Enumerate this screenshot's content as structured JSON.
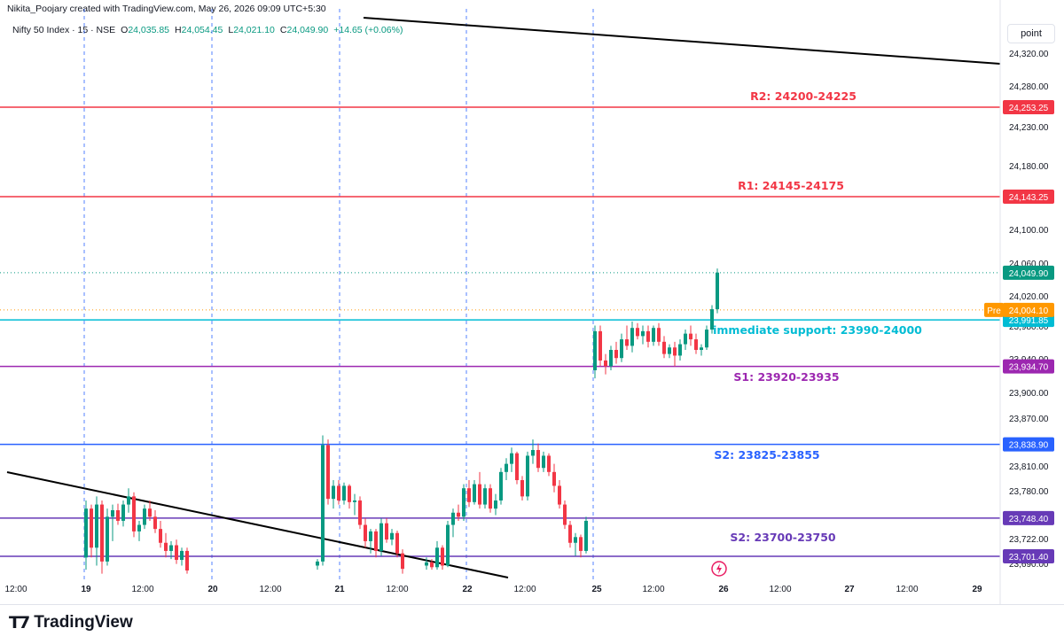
{
  "header": {
    "credit": "Nikita_Poojary created with TradingView.com, May 26, 2026 09:09 UTC+5:30"
  },
  "symbol_bar": {
    "name": "Nifty 50 Index · 15 · NSE",
    "o_label": "O",
    "o_value": "24,035.85",
    "h_label": "H",
    "h_value": "24,054.45",
    "l_label": "L",
    "l_value": "24,021.10",
    "c_label": "C",
    "c_value": "24,049.90",
    "change": "+14.65 (+0.06%)"
  },
  "toolbar": {
    "unit_label": "point"
  },
  "brand": {
    "logo_text": "TradingView",
    "logo_icon": "tradingview-logo-icon"
  },
  "colors": {
    "up": "#089981",
    "down": "#f23645",
    "resistance": "#f23645",
    "immediate": "#00bcd4",
    "s1": "#9c27b0",
    "s2_blue": "#2962ff",
    "s2_purple": "#673ab7",
    "pre": "#ff9800",
    "trend": "#000000"
  },
  "chart_data": {
    "type": "candlestick",
    "y_ticks": [
      "24,320.00",
      "24,280.00",
      "24,230.00",
      "24,180.00",
      "24,100.00",
      "24,060.00",
      "24,020.00",
      "23,980.00",
      "23,940.00",
      "23,900.00",
      "23,870.00",
      "23,840.00",
      "23,810.00",
      "23,780.00",
      "23,750.00",
      "23,722.00",
      "23,690.00"
    ],
    "x_ticks": [
      "12:00",
      "19",
      "12:00",
      "20",
      "12:00",
      "21",
      "12:00",
      "22",
      "12:00",
      "25",
      "12:00",
      "26",
      "12:00",
      "27",
      "12:00",
      "29"
    ],
    "x_tick_bold": [
      false,
      true,
      false,
      true,
      false,
      true,
      false,
      true,
      false,
      true,
      false,
      true,
      false,
      true,
      false,
      true
    ],
    "day_separators": [
      "19",
      "20",
      "21",
      "22",
      "25"
    ],
    "levels": [
      {
        "id": "r2",
        "value": 24253.25,
        "tag": "24,253.25",
        "label": "R2: 24200-24225",
        "color": "#f23645"
      },
      {
        "id": "r1",
        "value": 24143.25,
        "tag": "24,143.25",
        "label": "R1: 24145-24175",
        "color": "#f23645"
      },
      {
        "id": "immediate",
        "value": 23991.85,
        "tag": "23,991.85",
        "label": "immediate support: 23990-24000",
        "color": "#00bcd4"
      },
      {
        "id": "s1",
        "value": 23934.7,
        "tag": "23,934.70",
        "label": "S1: 23920-23935",
        "color": "#9c27b0"
      },
      {
        "id": "s2a",
        "value": 23838.9,
        "tag": "23,838.90",
        "label": "S2: 23825-23855",
        "color": "#2962ff"
      },
      {
        "id": "s2b",
        "value": 23748.4,
        "tag": "23,748.40",
        "label": "S2: 23700-23750",
        "color": "#673ab7"
      },
      {
        "id": "base",
        "value": 23701.4,
        "tag": "23,701.40",
        "label": "",
        "color": "#673ab7"
      }
    ],
    "last_price": {
      "value": 24049.9,
      "tag": "24,049.90"
    },
    "pre_market": {
      "value": 24004.1,
      "tag": "24,004.10",
      "label": "Pre"
    },
    "candles": [
      {
        "t": "19",
        "o": 23700,
        "h": 23770,
        "l": 23685,
        "c": 23760
      },
      {
        "t": "19",
        "o": 23760,
        "h": 23765,
        "l": 23700,
        "c": 23712
      },
      {
        "t": "19",
        "o": 23712,
        "h": 23775,
        "l": 23690,
        "c": 23765
      },
      {
        "t": "19",
        "o": 23765,
        "h": 23770,
        "l": 23680,
        "c": 23695
      },
      {
        "t": "19",
        "o": 23695,
        "h": 23760,
        "l": 23690,
        "c": 23750
      },
      {
        "t": "19",
        "o": 23750,
        "h": 23765,
        "l": 23720,
        "c": 23758
      },
      {
        "t": "19",
        "o": 23758,
        "h": 23766,
        "l": 23740,
        "c": 23745
      },
      {
        "t": "19",
        "o": 23745,
        "h": 23770,
        "l": 23738,
        "c": 23765
      },
      {
        "t": "19",
        "o": 23765,
        "h": 23785,
        "l": 23755,
        "c": 23775
      },
      {
        "t": "19",
        "o": 23775,
        "h": 23780,
        "l": 23725,
        "c": 23732
      },
      {
        "t": "19",
        "o": 23732,
        "h": 23745,
        "l": 23720,
        "c": 23740
      },
      {
        "t": "19",
        "o": 23740,
        "h": 23765,
        "l": 23735,
        "c": 23760
      },
      {
        "t": "19",
        "o": 23760,
        "h": 23770,
        "l": 23745,
        "c": 23750
      },
      {
        "t": "19",
        "o": 23750,
        "h": 23758,
        "l": 23730,
        "c": 23735
      },
      {
        "t": "19",
        "o": 23735,
        "h": 23745,
        "l": 23712,
        "c": 23718
      },
      {
        "t": "19",
        "o": 23718,
        "h": 23730,
        "l": 23700,
        "c": 23708
      },
      {
        "t": "19",
        "o": 23708,
        "h": 23720,
        "l": 23698,
        "c": 23715
      },
      {
        "t": "19",
        "o": 23715,
        "h": 23722,
        "l": 23692,
        "c": 23697
      },
      {
        "t": "19",
        "o": 23697,
        "h": 23712,
        "l": 23690,
        "c": 23708
      },
      {
        "t": "19",
        "o": 23708,
        "h": 23712,
        "l": 23680,
        "c": 23684
      },
      {
        "gap": true
      },
      {
        "t": "21",
        "o": 23690,
        "h": 23698,
        "l": 23685,
        "c": 23695
      },
      {
        "t": "21",
        "o": 23695,
        "h": 23850,
        "l": 23690,
        "c": 23838
      },
      {
        "t": "21",
        "o": 23838,
        "h": 23845,
        "l": 23765,
        "c": 23772
      },
      {
        "t": "21",
        "o": 23772,
        "h": 23795,
        "l": 23760,
        "c": 23788
      },
      {
        "t": "21",
        "o": 23788,
        "h": 23795,
        "l": 23765,
        "c": 23770
      },
      {
        "t": "21",
        "o": 23770,
        "h": 23792,
        "l": 23765,
        "c": 23788
      },
      {
        "t": "21",
        "o": 23788,
        "h": 23790,
        "l": 23760,
        "c": 23768
      },
      {
        "t": "21",
        "o": 23768,
        "h": 23778,
        "l": 23752,
        "c": 23770
      },
      {
        "t": "21",
        "o": 23770,
        "h": 23775,
        "l": 23735,
        "c": 23740
      },
      {
        "t": "21",
        "o": 23740,
        "h": 23748,
        "l": 23712,
        "c": 23720
      },
      {
        "t": "21",
        "o": 23720,
        "h": 23735,
        "l": 23705,
        "c": 23732
      },
      {
        "t": "21",
        "o": 23732,
        "h": 23735,
        "l": 23700,
        "c": 23708
      },
      {
        "t": "21",
        "o": 23708,
        "h": 23748,
        "l": 23702,
        "c": 23742
      },
      {
        "t": "21",
        "o": 23742,
        "h": 23748,
        "l": 23718,
        "c": 23722
      },
      {
        "t": "21",
        "o": 23722,
        "h": 23735,
        "l": 23715,
        "c": 23730
      },
      {
        "t": "21",
        "o": 23730,
        "h": 23733,
        "l": 23700,
        "c": 23705
      },
      {
        "t": "21",
        "o": 23705,
        "h": 23710,
        "l": 23680,
        "c": 23686
      },
      {
        "gap": true
      },
      {
        "t": "22",
        "o": 23690,
        "h": 23700,
        "l": 23685,
        "c": 23694
      },
      {
        "t": "22",
        "o": 23694,
        "h": 23698,
        "l": 23685,
        "c": 23688
      },
      {
        "t": "22",
        "o": 23688,
        "h": 23720,
        "l": 23685,
        "c": 23712
      },
      {
        "t": "22",
        "o": 23712,
        "h": 23715,
        "l": 23685,
        "c": 23690
      },
      {
        "t": "22",
        "o": 23690,
        "h": 23745,
        "l": 23688,
        "c": 23740
      },
      {
        "t": "22",
        "o": 23740,
        "h": 23760,
        "l": 23725,
        "c": 23755
      },
      {
        "t": "22",
        "o": 23755,
        "h": 23765,
        "l": 23745,
        "c": 23750
      },
      {
        "t": "22",
        "o": 23750,
        "h": 23790,
        "l": 23745,
        "c": 23785
      },
      {
        "t": "22",
        "o": 23785,
        "h": 23795,
        "l": 23762,
        "c": 23768
      },
      {
        "t": "22",
        "o": 23768,
        "h": 23795,
        "l": 23765,
        "c": 23790
      },
      {
        "t": "22",
        "o": 23790,
        "h": 23805,
        "l": 23760,
        "c": 23765
      },
      {
        "t": "22",
        "o": 23765,
        "h": 23790,
        "l": 23760,
        "c": 23785
      },
      {
        "t": "22",
        "o": 23785,
        "h": 23790,
        "l": 23755,
        "c": 23760
      },
      {
        "t": "22",
        "o": 23760,
        "h": 23778,
        "l": 23752,
        "c": 23770
      },
      {
        "t": "22",
        "o": 23770,
        "h": 23810,
        "l": 23765,
        "c": 23805
      },
      {
        "t": "22",
        "o": 23805,
        "h": 23822,
        "l": 23795,
        "c": 23815
      },
      {
        "t": "22",
        "o": 23815,
        "h": 23835,
        "l": 23805,
        "c": 23828
      },
      {
        "t": "22",
        "o": 23828,
        "h": 23830,
        "l": 23790,
        "c": 23795
      },
      {
        "t": "22",
        "o": 23795,
        "h": 23800,
        "l": 23770,
        "c": 23775
      },
      {
        "t": "22",
        "o": 23775,
        "h": 23830,
        "l": 23770,
        "c": 23825
      },
      {
        "t": "22",
        "o": 23825,
        "h": 23845,
        "l": 23815,
        "c": 23832
      },
      {
        "t": "22",
        "o": 23832,
        "h": 23840,
        "l": 23805,
        "c": 23810
      },
      {
        "t": "22",
        "o": 23810,
        "h": 23830,
        "l": 23805,
        "c": 23825
      },
      {
        "t": "22",
        "o": 23825,
        "h": 23828,
        "l": 23800,
        "c": 23805
      },
      {
        "t": "22",
        "o": 23805,
        "h": 23815,
        "l": 23780,
        "c": 23788
      },
      {
        "t": "22",
        "o": 23788,
        "h": 23795,
        "l": 23760,
        "c": 23765
      },
      {
        "t": "22",
        "o": 23765,
        "h": 23770,
        "l": 23735,
        "c": 23740
      },
      {
        "t": "22",
        "o": 23740,
        "h": 23745,
        "l": 23712,
        "c": 23718
      },
      {
        "t": "22",
        "o": 23718,
        "h": 23730,
        "l": 23702,
        "c": 23725
      },
      {
        "t": "22",
        "o": 23725,
        "h": 23728,
        "l": 23700,
        "c": 23708
      },
      {
        "t": "22",
        "o": 23708,
        "h": 23750,
        "l": 23705,
        "c": 23745
      },
      {
        "t": "25",
        "o": 23930,
        "h": 23985,
        "l": 23920,
        "c": 23978
      },
      {
        "t": "25",
        "o": 23978,
        "h": 23985,
        "l": 23935,
        "c": 23942
      },
      {
        "t": "25",
        "o": 23942,
        "h": 23950,
        "l": 23925,
        "c": 23935
      },
      {
        "t": "25",
        "o": 23935,
        "h": 23960,
        "l": 23930,
        "c": 23955
      },
      {
        "t": "25",
        "o": 23955,
        "h": 23965,
        "l": 23938,
        "c": 23945
      },
      {
        "t": "25",
        "o": 23945,
        "h": 23975,
        "l": 23940,
        "c": 23968
      },
      {
        "t": "25",
        "o": 23968,
        "h": 23985,
        "l": 23955,
        "c": 23960
      },
      {
        "t": "25",
        "o": 23960,
        "h": 23990,
        "l": 23952,
        "c": 23982
      },
      {
        "t": "25",
        "o": 23982,
        "h": 23988,
        "l": 23968,
        "c": 23972
      },
      {
        "t": "25",
        "o": 23972,
        "h": 23985,
        "l": 23962,
        "c": 23978
      },
      {
        "t": "25",
        "o": 23978,
        "h": 23985,
        "l": 23958,
        "c": 23965
      },
      {
        "t": "25",
        "o": 23965,
        "h": 23985,
        "l": 23960,
        "c": 23982
      },
      {
        "t": "25",
        "o": 23982,
        "h": 23988,
        "l": 23960,
        "c": 23965
      },
      {
        "t": "25",
        "o": 23965,
        "h": 23972,
        "l": 23945,
        "c": 23950
      },
      {
        "t": "25",
        "o": 23950,
        "h": 23962,
        "l": 23945,
        "c": 23958
      },
      {
        "t": "25",
        "o": 23958,
        "h": 23965,
        "l": 23935,
        "c": 23948
      },
      {
        "t": "25",
        "o": 23948,
        "h": 23968,
        "l": 23942,
        "c": 23962
      },
      {
        "t": "25",
        "o": 23962,
        "h": 23980,
        "l": 23955,
        "c": 23975
      },
      {
        "t": "25",
        "o": 23975,
        "h": 23985,
        "l": 23960,
        "c": 23968
      },
      {
        "t": "25",
        "o": 23968,
        "h": 23975,
        "l": 23950,
        "c": 23955
      },
      {
        "t": "25",
        "o": 23955,
        "h": 23962,
        "l": 23948,
        "c": 23958
      },
      {
        "t": "25",
        "o": 23958,
        "h": 23985,
        "l": 23955,
        "c": 23980
      },
      {
        "t": "25",
        "o": 23980,
        "h": 24010,
        "l": 23975,
        "c": 24005
      },
      {
        "t": "25",
        "o": 24005,
        "h": 24040,
        "l": 24000,
        "c": 24035
      },
      {
        "t": "26",
        "o": 24035,
        "h": 24055,
        "l": 24021,
        "c": 24050
      }
    ],
    "trend_lines": [
      {
        "id": "upper",
        "from": {
          "x": 410,
          "y": 20
        },
        "to": {
          "x": 1128,
          "y": 72
        }
      },
      {
        "id": "lower",
        "from": {
          "x": 8,
          "y": 533
        },
        "to": {
          "x": 573,
          "y": 652
        }
      }
    ]
  }
}
